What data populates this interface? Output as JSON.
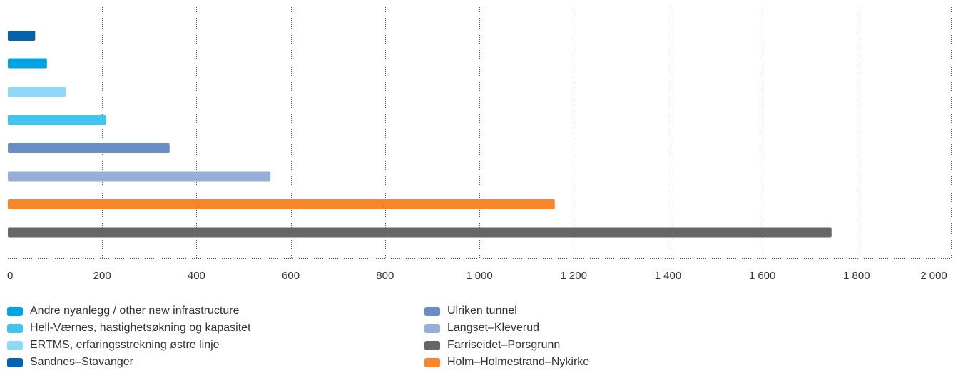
{
  "chart_data": {
    "type": "bar",
    "orientation": "horizontal",
    "title": "",
    "xlabel": "",
    "ylabel": "",
    "xlim": [
      0,
      2000
    ],
    "x_ticks": [
      0,
      200,
      400,
      600,
      800,
      1000,
      1200,
      1400,
      1600,
      1800,
      2000
    ],
    "x_tick_labels": [
      "0",
      "200",
      "400",
      "600",
      "800",
      "1 000",
      "1 200",
      "1 400",
      "1 600",
      "1 800",
      "2 000"
    ],
    "grid": "vertical dotted",
    "legend_position": "bottom",
    "bars_top_to_bottom": [
      {
        "name": "Sandnes–Stavanger",
        "value": 58,
        "color": "#0563AE"
      },
      {
        "name": "Andre nyanlegg / other new infrastructure",
        "value": 83,
        "color": "#00A3E3"
      },
      {
        "name": "ERTMS, erfaringsstrekning østre linje",
        "value": 123,
        "color": "#8FD9F6"
      },
      {
        "name": "Hell-Værnes, hastighetsøkning og kapasitet",
        "value": 208,
        "color": "#40C5F0"
      },
      {
        "name": "Ulriken tunnel",
        "value": 343,
        "color": "#6A8CC7"
      },
      {
        "name": "Langset–Kleverud",
        "value": 557,
        "color": "#97AED9"
      },
      {
        "name": "Holm–Holmestrand–Nykirke",
        "value": 1160,
        "color": "#F5862A"
      },
      {
        "name": "Farriseidet–Porsgrunn",
        "value": 1747,
        "color": "#666666"
      }
    ],
    "legend_columns": [
      [
        "Andre nyanlegg / other new infrastructure",
        "Hell-Værnes, hastighetsøkning og kapasitet",
        "ERTMS, erfaringsstrekning østre linje",
        "Sandnes–Stavanger"
      ],
      [
        "Ulriken tunnel",
        "Langset–Kleverud",
        "Farriseidet–Porsgrunn",
        "Holm–Holmestrand–Nykirke"
      ]
    ]
  }
}
